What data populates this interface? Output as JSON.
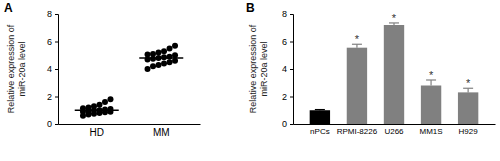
{
  "chart_data": [
    {
      "type": "strip",
      "title": "A",
      "y_label": "Relative expression of miR-20a level",
      "categories": [
        "HD",
        "MM"
      ],
      "values": [
        [
          0.6,
          0.7,
          0.75,
          0.8,
          0.85,
          0.9,
          0.9,
          0.95,
          1.0,
          1.0,
          1.05,
          1.1,
          1.15,
          1.2,
          1.3,
          1.4,
          1.6,
          1.8
        ],
        [
          4.0,
          4.2,
          4.3,
          4.4,
          4.5,
          4.6,
          4.7,
          4.75,
          4.8,
          4.85,
          4.9,
          5.0,
          5.05,
          5.1,
          5.2,
          5.3,
          5.5,
          5.7
        ]
      ],
      "means": [
        1.0,
        4.8
      ],
      "color": "#000000",
      "marker": "circle",
      "ylim": [
        0,
        8
      ],
      "yticks": [
        0,
        2,
        4,
        6,
        8
      ]
    },
    {
      "type": "bar",
      "title": "B",
      "y_label": "Relative expression of miR-20a level",
      "categories": [
        "nPCs",
        "RPMI-8226",
        "U266",
        "MM1S",
        "H929"
      ],
      "values": [
        1.0,
        5.55,
        7.2,
        2.8,
        2.3
      ],
      "errors": [
        0.05,
        0.25,
        0.15,
        0.4,
        0.3
      ],
      "annotations": [
        null,
        "*",
        "*",
        "*",
        "*"
      ],
      "colors": [
        "#000000",
        "#808080",
        "#808080",
        "#808080",
        "#808080"
      ],
      "ylim": [
        0,
        8
      ],
      "yticks": [
        0,
        2,
        4,
        6,
        8
      ]
    }
  ]
}
